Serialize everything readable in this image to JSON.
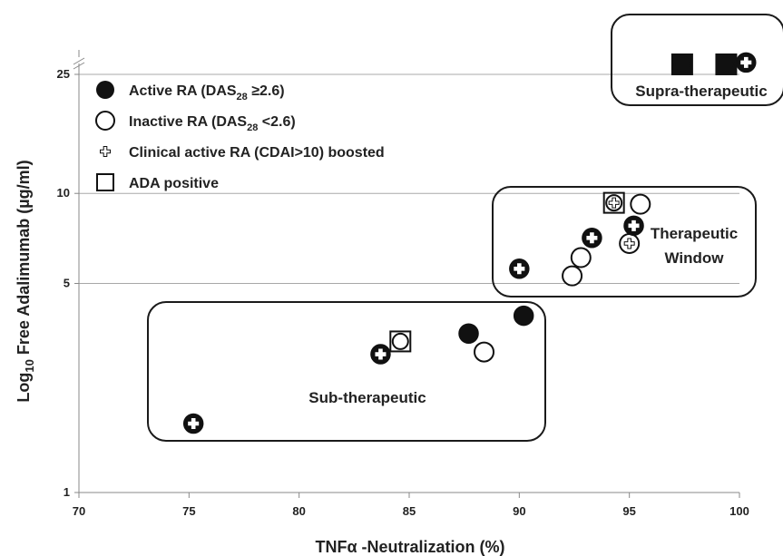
{
  "chart_data": {
    "type": "scatter",
    "title": "",
    "xlabel": "TNFα -Neutralization (%)",
    "ylabel": "Log10 Free Adalimumab (µg/ml)",
    "ylabel_parts": {
      "pre": "Log",
      "sub": "10",
      "post": " Free Adalimumab (µg/ml)"
    },
    "xlim": [
      70,
      100
    ],
    "ylim": [
      1,
      25
    ],
    "y_scale": "log",
    "x_ticks": [
      "70",
      "75",
      "80",
      "85",
      "90",
      "95",
      "100"
    ],
    "y_ticks": [
      {
        "value": 1,
        "label": "1"
      },
      {
        "value": 5,
        "label": "5"
      },
      {
        "value": 10,
        "label": "10"
      },
      {
        "value": 25,
        "label": "25"
      }
    ],
    "grid": "horizontal",
    "legend_position": "top-left",
    "legend": [
      {
        "marker": "filled-circle",
        "parts": [
          {
            "t": "Active RA (DAS"
          },
          {
            "t": "28",
            "sub": true
          },
          {
            "t": " ≥2.6)"
          }
        ]
      },
      {
        "marker": "open-circle",
        "parts": [
          {
            "t": "Inactive RA (DAS"
          },
          {
            "t": "28",
            "sub": true
          },
          {
            "t": " <2.6)"
          }
        ]
      },
      {
        "marker": "cross",
        "parts": [
          {
            "t": "Clinical active RA (CDAI>10) boosted"
          }
        ]
      },
      {
        "marker": "square",
        "parts": [
          {
            "t": "ADA positive"
          }
        ]
      }
    ],
    "regions": [
      {
        "name": "Sub-therapeutic",
        "label_lines": [
          "Sub-therapeutic"
        ]
      },
      {
        "name": "Therapeutic Window",
        "label_lines": [
          "Therapeutic",
          "Window"
        ]
      },
      {
        "name": "Supra-therapeutic",
        "label_lines": [
          "Supra-therapeutic"
        ]
      }
    ],
    "points": [
      {
        "x": 75.2,
        "y": 1.7,
        "activity": "active",
        "boosted": true,
        "ada": false
      },
      {
        "x": 83.7,
        "y": 2.9,
        "activity": "active",
        "boosted": true,
        "ada": false
      },
      {
        "x": 84.6,
        "y": 3.2,
        "activity": "inactive",
        "boosted": false,
        "ada": true
      },
      {
        "x": 87.7,
        "y": 3.4,
        "activity": "active",
        "boosted": false,
        "ada": false
      },
      {
        "x": 88.4,
        "y": 2.95,
        "activity": "inactive",
        "boosted": false,
        "ada": false
      },
      {
        "x": 90.2,
        "y": 3.9,
        "activity": "active",
        "boosted": false,
        "ada": false
      },
      {
        "x": 90.0,
        "y": 5.6,
        "activity": "active",
        "boosted": true,
        "ada": false
      },
      {
        "x": 92.4,
        "y": 5.3,
        "activity": "inactive",
        "boosted": false,
        "ada": false
      },
      {
        "x": 92.8,
        "y": 6.1,
        "activity": "inactive",
        "boosted": false,
        "ada": false
      },
      {
        "x": 93.3,
        "y": 7.1,
        "activity": "active",
        "boosted": true,
        "ada": false
      },
      {
        "x": 94.3,
        "y": 9.3,
        "activity": "inactive",
        "boosted": true,
        "ada": true
      },
      {
        "x": 95.0,
        "y": 6.8,
        "activity": "inactive",
        "boosted": true,
        "ada": false
      },
      {
        "x": 95.2,
        "y": 7.8,
        "activity": "active",
        "boosted": true,
        "ada": false
      },
      {
        "x": 95.5,
        "y": 9.2,
        "activity": "inactive",
        "boosted": false,
        "ada": false
      },
      {
        "x": 97.4,
        "y": 27,
        "activity": "active",
        "boosted": false,
        "ada": true
      },
      {
        "x": 99.4,
        "y": 27,
        "activity": "active",
        "boosted": false,
        "ada": true
      },
      {
        "x": 100.3,
        "y": 27.4,
        "activity": "active",
        "boosted": true,
        "ada": false
      }
    ]
  }
}
